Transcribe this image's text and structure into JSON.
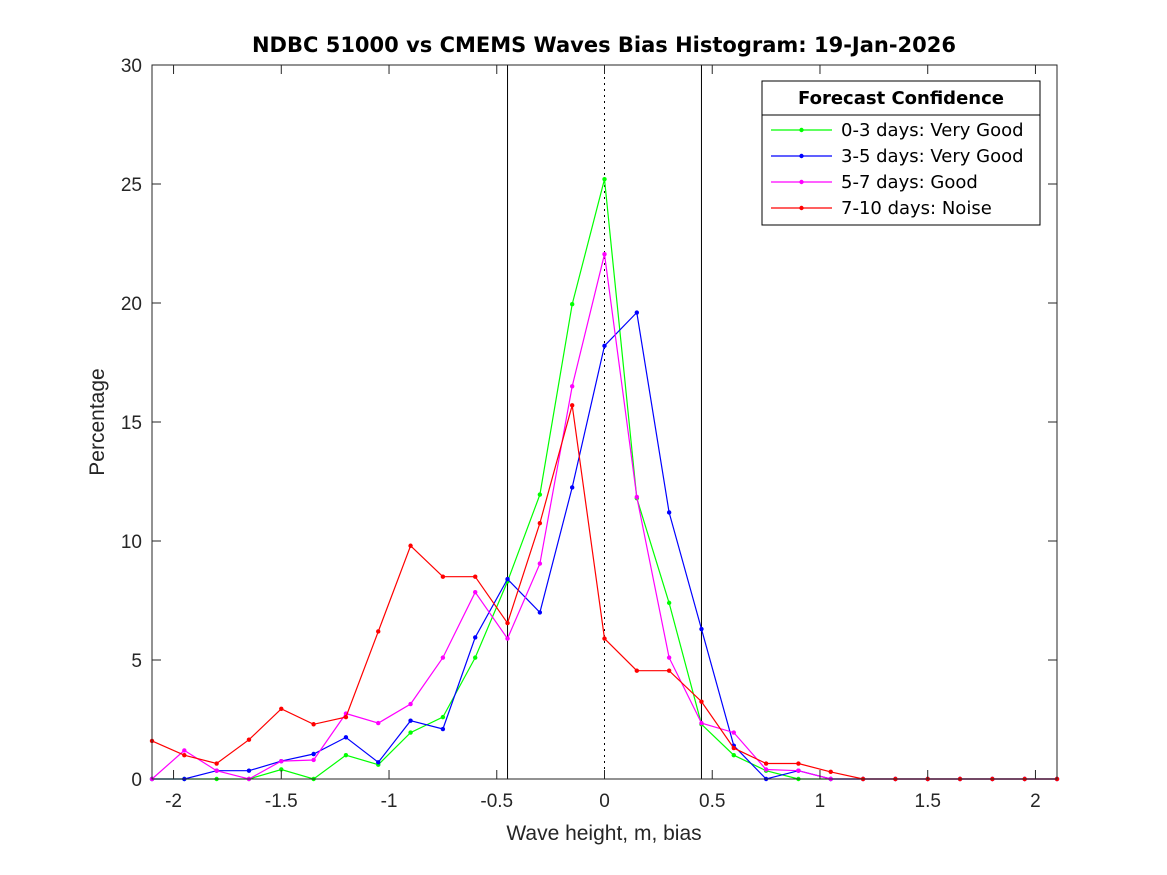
{
  "chart_data": {
    "type": "line",
    "title": "NDBC 51000 vs CMEMS Waves Bias Histogram: 19-Jan-2026",
    "xlabel": "Wave height, m, bias",
    "ylabel": "Percentage",
    "xlim": [
      -2.1,
      2.1
    ],
    "ylim": [
      0,
      30
    ],
    "xticks": [
      -2,
      -1.5,
      -1,
      -0.5,
      0,
      0.5,
      1,
      1.5,
      2
    ],
    "xtick_labels": [
      "-2",
      "-1.5",
      "-1",
      "-0.5",
      "0",
      "0.5",
      "1",
      "1.5",
      "2"
    ],
    "yticks": [
      0,
      5,
      10,
      15,
      20,
      25,
      30
    ],
    "ytick_labels": [
      "0",
      "5",
      "10",
      "15",
      "20",
      "25",
      "30"
    ],
    "grid": false,
    "reference_lines": [
      {
        "x": -0.45,
        "style": "solid"
      },
      {
        "x": 0,
        "style": "dotted"
      },
      {
        "x": 0.45,
        "style": "solid"
      }
    ],
    "x": [
      -2.1,
      -1.95,
      -1.8,
      -1.65,
      -1.5,
      -1.35,
      -1.2,
      -1.05,
      -0.9,
      -0.75,
      -0.6,
      -0.45,
      -0.3,
      -0.15,
      0,
      0.15,
      0.3,
      0.45,
      0.6,
      0.75,
      0.9,
      1.05,
      1.2,
      1.35,
      1.5,
      1.65,
      1.8,
      1.95,
      2.1
    ],
    "series": [
      {
        "name": "0-3 days: Very Good",
        "color": "#00ff00",
        "values": [
          0,
          0,
          0,
          0,
          0.4,
          0,
          1.0,
          0.6,
          1.95,
          2.6,
          5.1,
          8.3,
          11.95,
          19.95,
          25.2,
          11.8,
          7.4,
          2.3,
          1.0,
          0.35,
          0,
          0,
          0,
          0,
          0,
          0,
          0,
          0,
          0
        ]
      },
      {
        "name": "3-5 days: Very Good",
        "color": "#0000ff",
        "values": [
          0,
          0,
          0.35,
          0.35,
          0.75,
          1.05,
          1.75,
          0.7,
          2.45,
          2.1,
          5.95,
          8.4,
          7.0,
          12.25,
          18.2,
          19.6,
          11.2,
          6.3,
          1.4,
          0,
          0.35,
          0,
          0,
          0,
          0,
          0,
          0,
          0,
          0
        ]
      },
      {
        "name": "5-7 days: Good",
        "color": "#ff00ff",
        "values": [
          0,
          1.2,
          0.35,
          0,
          0.75,
          0.8,
          2.75,
          2.35,
          3.15,
          5.1,
          7.85,
          5.9,
          9.05,
          16.5,
          22.05,
          11.85,
          5.1,
          2.35,
          1.95,
          0.4,
          0.35,
          0,
          0,
          0,
          0,
          0,
          0,
          0,
          0
        ]
      },
      {
        "name": "7-10 days: Noise",
        "color": "#ff0000",
        "values": [
          1.6,
          1.0,
          0.65,
          1.65,
          2.95,
          2.3,
          2.6,
          6.2,
          9.8,
          8.5,
          8.5,
          6.55,
          10.75,
          15.7,
          5.9,
          4.55,
          4.55,
          3.25,
          1.3,
          0.65,
          0.65,
          0.3,
          0,
          0,
          0,
          0,
          0,
          0,
          0
        ]
      }
    ],
    "legend": {
      "title": "Forecast Confidence",
      "placement": "top-right"
    }
  }
}
